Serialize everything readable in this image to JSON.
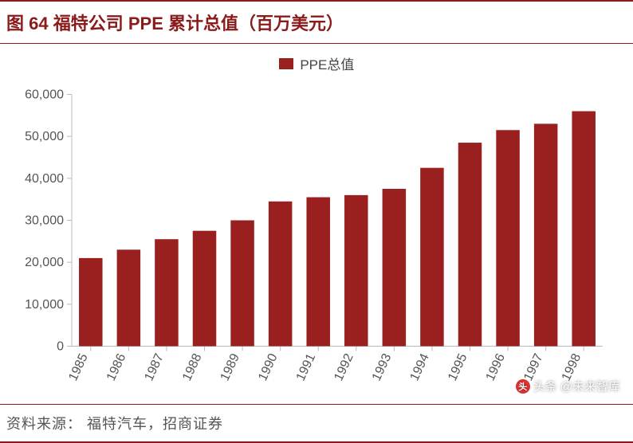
{
  "title": {
    "prefix": "图",
    "number": "64",
    "text": "福特公司 PPE 累计总值（百万美元）",
    "text_color": "#8b1a1a",
    "number_color": "#8b1a1a",
    "border_color": "#8b1a1a",
    "fontsize": 22
  },
  "legend": {
    "label": "PPE总值",
    "swatch_color": "#9a1f1f"
  },
  "chart": {
    "type": "bar",
    "categories": [
      "1985",
      "1986",
      "1987",
      "1988",
      "1989",
      "1990",
      "1991",
      "1992",
      "1993",
      "1994",
      "1995",
      "1996",
      "1997",
      "1998"
    ],
    "values": [
      21000,
      23000,
      25500,
      27500,
      30000,
      34500,
      35500,
      36000,
      37500,
      42500,
      48500,
      51500,
      53000,
      56000
    ],
    "bar_color": "#9a1f1f",
    "ylim": [
      0,
      60000
    ],
    "ytick_step": 10000,
    "ytick_labels": [
      "0",
      "10,000",
      "20,000",
      "30,000",
      "40,000",
      "50,000",
      "60,000"
    ],
    "background_color": "#ffffff",
    "axis_color": "#bbbbbb",
    "tick_color": "#555555",
    "bar_width": 0.62,
    "label_fontsize": 16,
    "x_label_rotation": -65
  },
  "source": {
    "label": "资料来源：",
    "text": "福特汽车，招商证券",
    "border_color": "#8b1a1a"
  },
  "watermark": {
    "prefix": "头条",
    "text": "@未来智库"
  }
}
